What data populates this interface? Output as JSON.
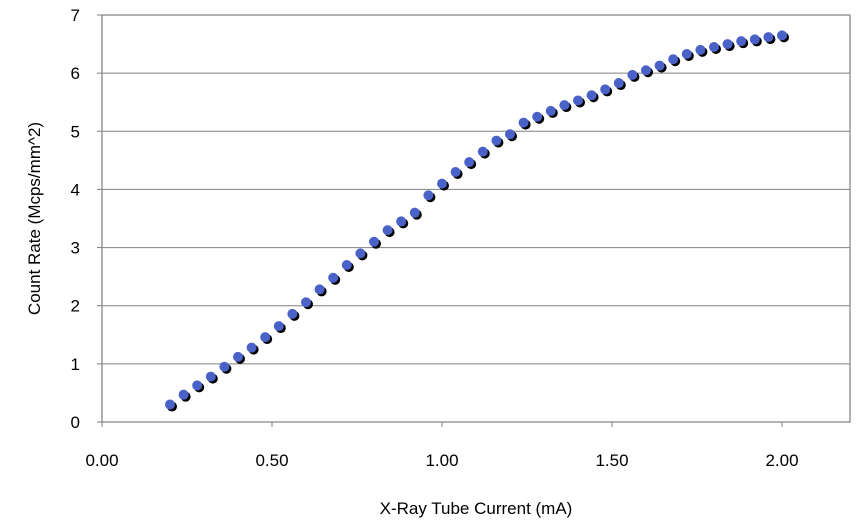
{
  "chart_data": {
    "type": "scatter",
    "title": "",
    "xlabel": "X-Ray Tube Current (mA)",
    "ylabel": "Count Rate (Mcps/mm^2)",
    "xlim": [
      0,
      2.2
    ],
    "ylim": [
      0,
      7
    ],
    "x_ticks": [
      0,
      0.5,
      1.0,
      1.5,
      2.0
    ],
    "x_tick_labels": [
      "0.00",
      "0.50",
      "1.00",
      "1.50",
      "2.00"
    ],
    "y_ticks": [
      0,
      1,
      2,
      3,
      4,
      5,
      6,
      7
    ],
    "y_tick_labels": [
      "0",
      "1",
      "2",
      "3",
      "4",
      "5",
      "6",
      "7"
    ],
    "grid": "horizontal",
    "legend": "none",
    "series": [
      {
        "marker_color": "#4a62c8",
        "shadow_color": "#000000",
        "x": [
          0.2,
          0.24,
          0.28,
          0.32,
          0.36,
          0.4,
          0.44,
          0.48,
          0.52,
          0.56,
          0.6,
          0.64,
          0.68,
          0.72,
          0.76,
          0.8,
          0.84,
          0.88,
          0.92,
          0.96,
          1.0,
          1.04,
          1.08,
          1.12,
          1.16,
          1.2,
          1.24,
          1.28,
          1.32,
          1.36,
          1.4,
          1.44,
          1.48,
          1.52,
          1.56,
          1.6,
          1.64,
          1.68,
          1.72,
          1.76,
          1.8,
          1.84,
          1.88,
          1.92,
          1.96,
          2.0
        ],
        "y": [
          0.3,
          0.47,
          0.63,
          0.78,
          0.95,
          1.12,
          1.28,
          1.46,
          1.65,
          1.86,
          2.06,
          2.28,
          2.48,
          2.7,
          2.9,
          3.1,
          3.3,
          3.45,
          3.6,
          3.9,
          4.1,
          4.3,
          4.47,
          4.65,
          4.84,
          4.95,
          5.15,
          5.25,
          5.35,
          5.45,
          5.53,
          5.62,
          5.72,
          5.83,
          5.97,
          6.05,
          6.13,
          6.24,
          6.33,
          6.4,
          6.45,
          6.5,
          6.55,
          6.58,
          6.62,
          6.65
        ]
      }
    ]
  }
}
